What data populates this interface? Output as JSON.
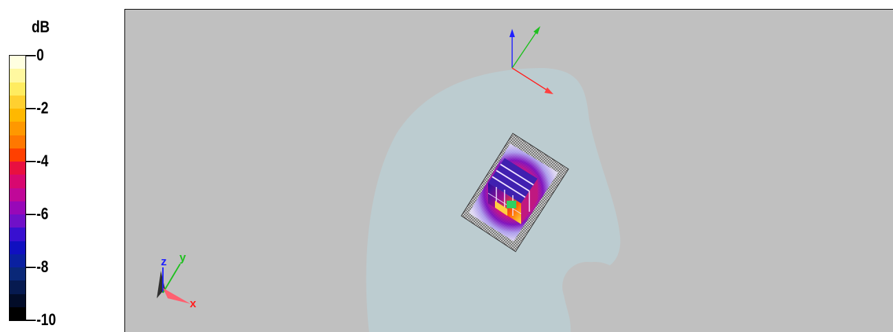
{
  "legend": {
    "unit": "dB",
    "ticks": [
      {
        "label": "0",
        "value": 0
      },
      {
        "label": "-2",
        "value": -2
      },
      {
        "label": "-4",
        "value": -4
      },
      {
        "label": "-6",
        "value": -6
      },
      {
        "label": "-8",
        "value": -8
      },
      {
        "label": "-10",
        "value": -10
      }
    ],
    "colors": [
      "#ffffe0",
      "#fff8a0",
      "#ffec60",
      "#ffd030",
      "#ffb800",
      "#ff9800",
      "#ff7800",
      "#ff4000",
      "#e81040",
      "#d80870",
      "#c00898",
      "#9808b8",
      "#7010c8",
      "#3810d0",
      "#1010c0",
      "#0a20a0",
      "#0a2878",
      "#061a50",
      "#020c28",
      "#000000"
    ]
  },
  "viewport": {
    "background_color": "#c0c0c0",
    "phantom_color": "#bcccd0"
  },
  "axes_triad": {
    "labels": {
      "x": "x",
      "y": "y",
      "z": "z"
    },
    "colors": {
      "x": "#ff2020",
      "y": "#20c020",
      "z": "#2020ff"
    }
  }
}
